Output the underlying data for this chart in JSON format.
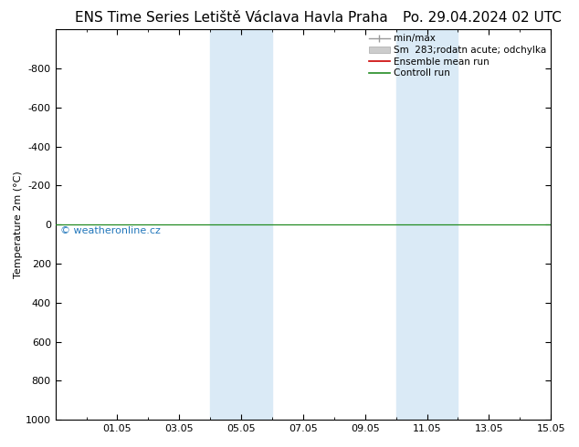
{
  "title_left": "ENS Time Series Letiště Václava Havla Praha",
  "title_right": "Po. 29.04.2024 02 UTC",
  "ylabel": "Temperature 2m (°C)",
  "bg_color": "#ffffff",
  "plot_bg_color": "#ffffff",
  "xlim_start": 0,
  "xlim_end": 16,
  "ylim_bottom": 1000,
  "ylim_top": -1000,
  "yticks": [
    -800,
    -600,
    -400,
    -200,
    0,
    200,
    400,
    600,
    800,
    1000
  ],
  "xtick_positions": [
    2,
    4,
    6,
    8,
    10,
    12,
    14,
    16
  ],
  "xtick_labels": [
    "01.05",
    "03.05",
    "05.05",
    "07.05",
    "09.05",
    "11.05",
    "13.05",
    "15.05"
  ],
  "shaded_bands": [
    {
      "x_start": 5.0,
      "x_end": 7.0,
      "color": "#daeaf6"
    },
    {
      "x_start": 11.0,
      "x_end": 13.0,
      "color": "#daeaf6"
    }
  ],
  "watermark_text": "© weatheronline.cz",
  "watermark_color": "#2277bb",
  "control_run_color": "#228B22",
  "ensemble_mean_color": "#cc0000",
  "min_max_color": "#999999",
  "std_dev_color": "#cccccc",
  "horizontal_line_y": 0,
  "legend_labels": [
    "min/max",
    "Sm  283;rodatn acute; odchylka",
    "Ensemble mean run",
    "Controll run"
  ],
  "legend_colors": [
    "#999999",
    "#cccccc",
    "#cc0000",
    "#228B22"
  ],
  "title_fontsize": 11,
  "axis_fontsize": 8,
  "legend_fontsize": 7.5
}
